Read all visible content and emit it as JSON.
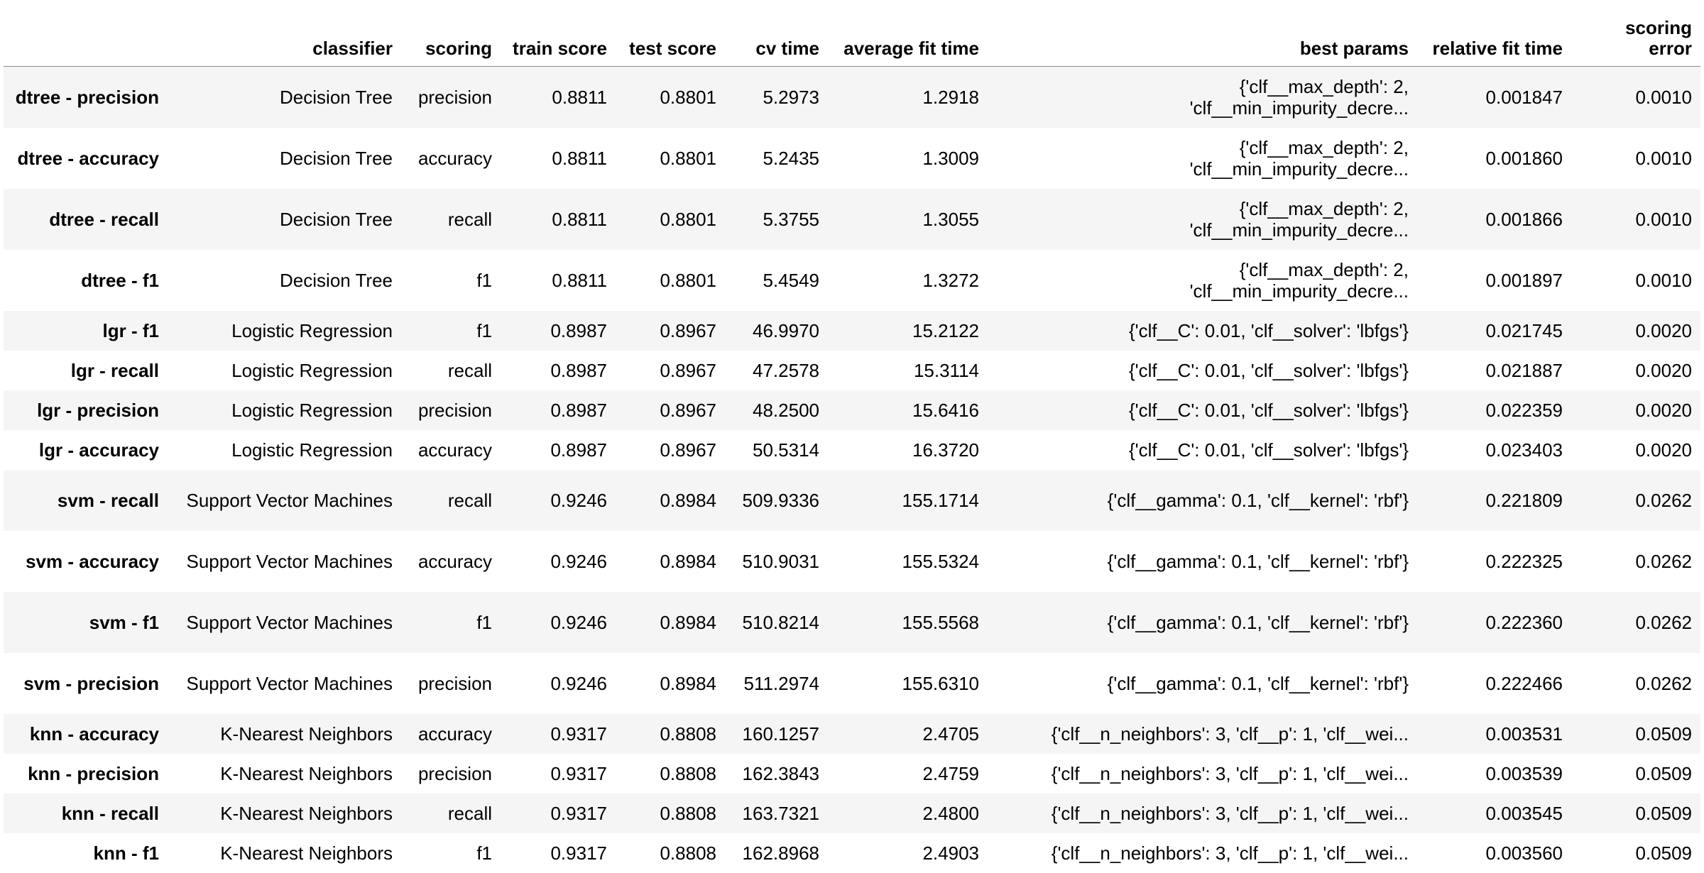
{
  "table": {
    "columns": [
      "",
      "classifier",
      "scoring",
      "train score",
      "test score",
      "cv time",
      "average fit time",
      "best params",
      "relative fit time",
      "scoring error"
    ],
    "rows": [
      {
        "index": "dtree - precision",
        "classifier": "Decision Tree",
        "scoring": "precision",
        "train_score": "0.8811",
        "test_score": "0.8801",
        "cv_time": "5.2973",
        "avg_fit_time": "1.2918",
        "best_params_1": "{'clf__max_depth': 2,",
        "best_params_2": "'clf__min_impurity_decre...",
        "relative_fit_time": "0.001847",
        "scoring_error": "0.0010"
      },
      {
        "index": "dtree - accuracy",
        "classifier": "Decision Tree",
        "scoring": "accuracy",
        "train_score": "0.8811",
        "test_score": "0.8801",
        "cv_time": "5.2435",
        "avg_fit_time": "1.3009",
        "best_params_1": "{'clf__max_depth': 2,",
        "best_params_2": "'clf__min_impurity_decre...",
        "relative_fit_time": "0.001860",
        "scoring_error": "0.0010"
      },
      {
        "index": "dtree - recall",
        "classifier": "Decision Tree",
        "scoring": "recall",
        "train_score": "0.8811",
        "test_score": "0.8801",
        "cv_time": "5.3755",
        "avg_fit_time": "1.3055",
        "best_params_1": "{'clf__max_depth': 2,",
        "best_params_2": "'clf__min_impurity_decre...",
        "relative_fit_time": "0.001866",
        "scoring_error": "0.0010"
      },
      {
        "index": "dtree - f1",
        "classifier": "Decision Tree",
        "scoring": "f1",
        "train_score": "0.8811",
        "test_score": "0.8801",
        "cv_time": "5.4549",
        "avg_fit_time": "1.3272",
        "best_params_1": "{'clf__max_depth': 2,",
        "best_params_2": "'clf__min_impurity_decre...",
        "relative_fit_time": "0.001897",
        "scoring_error": "0.0010"
      },
      {
        "index": "lgr - f1",
        "classifier": "Logistic Regression",
        "scoring": "f1",
        "train_score": "0.8987",
        "test_score": "0.8967",
        "cv_time": "46.9970",
        "avg_fit_time": "15.2122",
        "best_params_1": "{'clf__C': 0.01, 'clf__solver': 'lbfgs'}",
        "best_params_2": "",
        "relative_fit_time": "0.021745",
        "scoring_error": "0.0020"
      },
      {
        "index": "lgr - recall",
        "classifier": "Logistic Regression",
        "scoring": "recall",
        "train_score": "0.8987",
        "test_score": "0.8967",
        "cv_time": "47.2578",
        "avg_fit_time": "15.3114",
        "best_params_1": "{'clf__C': 0.01, 'clf__solver': 'lbfgs'}",
        "best_params_2": "",
        "relative_fit_time": "0.021887",
        "scoring_error": "0.0020"
      },
      {
        "index": "lgr - precision",
        "classifier": "Logistic Regression",
        "scoring": "precision",
        "train_score": "0.8987",
        "test_score": "0.8967",
        "cv_time": "48.2500",
        "avg_fit_time": "15.6416",
        "best_params_1": "{'clf__C': 0.01, 'clf__solver': 'lbfgs'}",
        "best_params_2": "",
        "relative_fit_time": "0.022359",
        "scoring_error": "0.0020"
      },
      {
        "index": "lgr - accuracy",
        "classifier": "Logistic Regression",
        "scoring": "accuracy",
        "train_score": "0.8987",
        "test_score": "0.8967",
        "cv_time": "50.5314",
        "avg_fit_time": "16.3720",
        "best_params_1": "{'clf__C': 0.01, 'clf__solver': 'lbfgs'}",
        "best_params_2": "",
        "relative_fit_time": "0.023403",
        "scoring_error": "0.0020"
      },
      {
        "index": "svm - recall",
        "classifier": "Support Vector Machines",
        "scoring": "recall",
        "train_score": "0.9246",
        "test_score": "0.8984",
        "cv_time": "509.9336",
        "avg_fit_time": "155.1714",
        "best_params_1": "{'clf__gamma': 0.1, 'clf__kernel': 'rbf'}",
        "best_params_2": "",
        "relative_fit_time": "0.221809",
        "scoring_error": "0.0262"
      },
      {
        "index": "svm - accuracy",
        "classifier": "Support Vector Machines",
        "scoring": "accuracy",
        "train_score": "0.9246",
        "test_score": "0.8984",
        "cv_time": "510.9031",
        "avg_fit_time": "155.5324",
        "best_params_1": "{'clf__gamma': 0.1, 'clf__kernel': 'rbf'}",
        "best_params_2": "",
        "relative_fit_time": "0.222325",
        "scoring_error": "0.0262"
      },
      {
        "index": "svm - f1",
        "classifier": "Support Vector Machines",
        "scoring": "f1",
        "train_score": "0.9246",
        "test_score": "0.8984",
        "cv_time": "510.8214",
        "avg_fit_time": "155.5568",
        "best_params_1": "{'clf__gamma': 0.1, 'clf__kernel': 'rbf'}",
        "best_params_2": "",
        "relative_fit_time": "0.222360",
        "scoring_error": "0.0262"
      },
      {
        "index": "svm - precision",
        "classifier": "Support Vector Machines",
        "scoring": "precision",
        "train_score": "0.9246",
        "test_score": "0.8984",
        "cv_time": "511.2974",
        "avg_fit_time": "155.6310",
        "best_params_1": "{'clf__gamma': 0.1, 'clf__kernel': 'rbf'}",
        "best_params_2": "",
        "relative_fit_time": "0.222466",
        "scoring_error": "0.0262"
      },
      {
        "index": "knn - accuracy",
        "classifier": "K-Nearest Neighbors",
        "scoring": "accuracy",
        "train_score": "0.9317",
        "test_score": "0.8808",
        "cv_time": "160.1257",
        "avg_fit_time": "2.4705",
        "best_params_1": "{'clf__n_neighbors': 3, 'clf__p': 1, 'clf__wei...",
        "best_params_2": "",
        "relative_fit_time": "0.003531",
        "scoring_error": "0.0509"
      },
      {
        "index": "knn - precision",
        "classifier": "K-Nearest Neighbors",
        "scoring": "precision",
        "train_score": "0.9317",
        "test_score": "0.8808",
        "cv_time": "162.3843",
        "avg_fit_time": "2.4759",
        "best_params_1": "{'clf__n_neighbors': 3, 'clf__p': 1, 'clf__wei...",
        "best_params_2": "",
        "relative_fit_time": "0.003539",
        "scoring_error": "0.0509"
      },
      {
        "index": "knn - recall",
        "classifier": "K-Nearest Neighbors",
        "scoring": "recall",
        "train_score": "0.9317",
        "test_score": "0.8808",
        "cv_time": "163.7321",
        "avg_fit_time": "2.4800",
        "best_params_1": "{'clf__n_neighbors': 3, 'clf__p': 1, 'clf__wei...",
        "best_params_2": "",
        "relative_fit_time": "0.003545",
        "scoring_error": "0.0509"
      },
      {
        "index": "knn - f1",
        "classifier": "K-Nearest Neighbors",
        "scoring": "f1",
        "train_score": "0.9317",
        "test_score": "0.8808",
        "cv_time": "162.8968",
        "avg_fit_time": "2.4903",
        "best_params_1": "{'clf__n_neighbors': 3, 'clf__p': 1, 'clf__wei...",
        "best_params_2": "",
        "relative_fit_time": "0.003560",
        "scoring_error": "0.0509"
      }
    ]
  }
}
